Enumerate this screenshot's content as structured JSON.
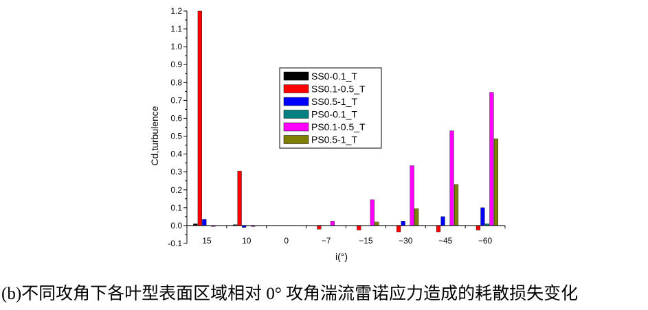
{
  "caption": "(b)不同攻角下各叶型表面区域相对 0° 攻角湍流雷诺应力造成的耗散损失变化",
  "chart_data": {
    "type": "bar",
    "xlabel": "i(°)",
    "ylabel": "Cd,turbulence",
    "categories": [
      "15",
      "10",
      "0",
      "−7",
      "−15",
      "−30",
      "−45",
      "−60"
    ],
    "yticks": [
      "-0.1",
      "0.0",
      "0.1",
      "0.2",
      "0.3",
      "0.4",
      "0.5",
      "0.6",
      "0.7",
      "0.8",
      "0.9",
      "1.0",
      "1.1",
      "1.2"
    ],
    "ylim": [
      -0.1,
      1.2
    ],
    "legend_position": "upper-center",
    "series": [
      {
        "name": "SS0-0.1_T",
        "color": "#000000",
        "values": [
          0.01,
          0.005,
          0,
          0,
          0,
          0,
          0,
          0
        ]
      },
      {
        "name": "SS0.1-0.5_T",
        "color": "#ff0000",
        "values": [
          1.2,
          0.305,
          0,
          -0.02,
          -0.025,
          -0.035,
          -0.035,
          -0.025
        ]
      },
      {
        "name": "SS0.5-1_T",
        "color": "#0000ff",
        "values": [
          0.035,
          -0.01,
          0,
          0,
          0,
          0.025,
          0.05,
          0.1
        ]
      },
      {
        "name": "PS0-0.1_T",
        "color": "#008080",
        "values": [
          0,
          0,
          0,
          0,
          0,
          0,
          0,
          0.01
        ]
      },
      {
        "name": "PS0.1-0.5_T",
        "color": "#ff00ff",
        "values": [
          -0.005,
          -0.005,
          0,
          0.025,
          0.145,
          0.335,
          0.53,
          0.745
        ]
      },
      {
        "name": "PS0.5-1_T",
        "color": "#808000",
        "values": [
          0,
          0,
          0,
          0,
          0.02,
          0.095,
          0.23,
          0.485
        ]
      }
    ]
  }
}
